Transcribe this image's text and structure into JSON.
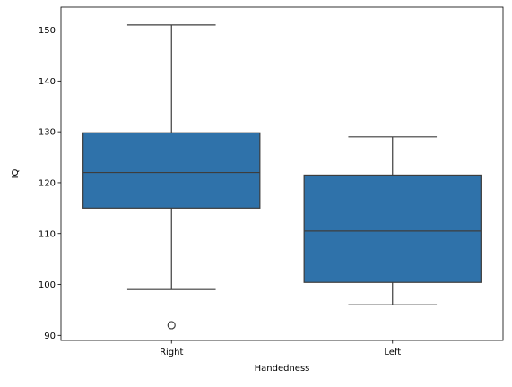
{
  "chart_data": {
    "type": "box",
    "title": "",
    "xlabel": "Handedness",
    "ylabel": "IQ",
    "ylim": [
      89,
      154.5
    ],
    "yticks": [
      90,
      100,
      110,
      120,
      130,
      140,
      150
    ],
    "grid": false,
    "legend": false,
    "box_color": "#2f72aa",
    "line_color": "#3d3d3d",
    "categories": [
      "Right",
      "Left"
    ],
    "boxes": [
      {
        "category": "Right",
        "whisker_low": 99,
        "q1": 115,
        "median": 122,
        "q3": 129.8,
        "whisker_high": 151,
        "outliers": [
          92
        ]
      },
      {
        "category": "Left",
        "whisker_low": 96,
        "q1": 100.4,
        "median": 110.5,
        "q3": 121.5,
        "whisker_high": 129,
        "outliers": []
      }
    ]
  }
}
